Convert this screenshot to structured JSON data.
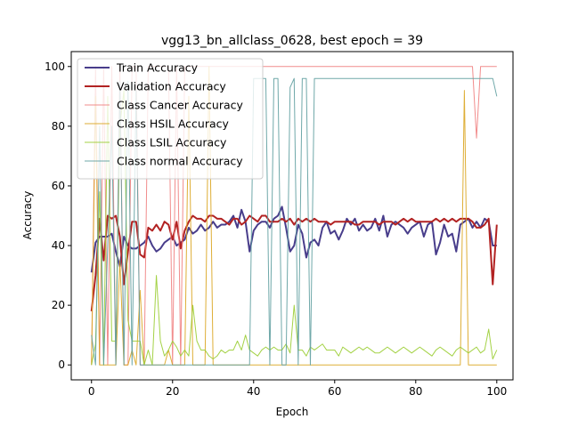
{
  "chart_data": {
    "type": "line",
    "title": "vgg13_bn_allclass_0628, best epoch = 39",
    "xlabel": "Epoch",
    "ylabel": "Accuracy",
    "xlim": [
      -5,
      104
    ],
    "ylim": [
      -5,
      105
    ],
    "xticks": [
      0,
      20,
      40,
      60,
      80,
      100
    ],
    "yticks": [
      0,
      20,
      40,
      60,
      80,
      100
    ],
    "legend_position": "top-left",
    "grid": false,
    "series": [
      {
        "name": "Train Accuracy",
        "color": "#483d8b",
        "width": 2,
        "alpha": 1,
        "values": [
          31,
          41,
          43,
          43,
          43,
          44,
          38,
          33,
          43,
          40,
          39,
          39,
          40,
          41,
          43,
          40,
          38,
          39,
          41,
          42,
          43,
          40,
          41,
          42,
          46,
          44,
          45,
          47,
          45,
          46,
          48,
          46,
          47,
          47,
          48,
          50,
          46,
          52,
          48,
          38,
          45,
          47,
          48,
          48,
          46,
          49,
          50,
          53,
          46,
          38,
          40,
          47,
          44,
          36,
          41,
          42,
          40,
          46,
          48,
          44,
          45,
          42,
          45,
          49,
          47,
          49,
          45,
          47,
          45,
          46,
          49,
          45,
          50,
          43,
          47,
          48,
          47,
          46,
          44,
          46,
          47,
          48,
          43,
          47,
          48,
          37,
          41,
          47,
          43,
          44,
          38,
          47,
          48,
          49,
          46,
          48,
          46,
          49,
          48,
          40,
          40
        ]
      },
      {
        "name": "Validation Accuracy",
        "color": "#b22222",
        "width": 2,
        "alpha": 1,
        "values": [
          18,
          30,
          49,
          35,
          50,
          49,
          50,
          43,
          27,
          38,
          48,
          48,
          37,
          36,
          46,
          45,
          47,
          45,
          48,
          47,
          42,
          48,
          39,
          45,
          48,
          50,
          49,
          49,
          48,
          50,
          50,
          49,
          49,
          48,
          47,
          49,
          49,
          47,
          48,
          50,
          49,
          48,
          50,
          50,
          48,
          48,
          48,
          49,
          48,
          49,
          47,
          49,
          48,
          49,
          48,
          49,
          48,
          48,
          48,
          47,
          48,
          48,
          48,
          48,
          48,
          47,
          47,
          48,
          48,
          48,
          48,
          47,
          48,
          48,
          48,
          47,
          48,
          49,
          48,
          49,
          48,
          48,
          48,
          48,
          48,
          49,
          48,
          49,
          48,
          49,
          48,
          49,
          49,
          49,
          48,
          46,
          46,
          47,
          49,
          27,
          47
        ]
      },
      {
        "name": "Class Cancer Accuracy",
        "color": "#f08080",
        "width": 1,
        "alpha": 0.9,
        "values": [
          0,
          100,
          0,
          100,
          0,
          100,
          0,
          100,
          0,
          0,
          100,
          100,
          0,
          0,
          100,
          100,
          100,
          100,
          100,
          100,
          0,
          100,
          0,
          100,
          100,
          100,
          100,
          100,
          100,
          100,
          100,
          100,
          100,
          100,
          100,
          100,
          100,
          100,
          100,
          100,
          100,
          100,
          100,
          100,
          100,
          100,
          100,
          100,
          100,
          100,
          100,
          100,
          100,
          100,
          100,
          100,
          100,
          100,
          100,
          100,
          100,
          100,
          100,
          100,
          100,
          100,
          100,
          100,
          100,
          100,
          100,
          100,
          100,
          100,
          100,
          100,
          100,
          100,
          100,
          100,
          100,
          100,
          100,
          100,
          100,
          100,
          100,
          100,
          100,
          100,
          100,
          100,
          100,
          100,
          100,
          76,
          100,
          100,
          100,
          100,
          100
        ]
      },
      {
        "name": "Class HSIL Accuracy",
        "color": "#daa520",
        "width": 1,
        "alpha": 0.9,
        "values": [
          0,
          90,
          0,
          0,
          0,
          0,
          0,
          35,
          0,
          0,
          5,
          0,
          25,
          0,
          0,
          0,
          0,
          0,
          0,
          5,
          0,
          0,
          0,
          0,
          90,
          0,
          0,
          0,
          0,
          100,
          0,
          0,
          0,
          0,
          0,
          0,
          0,
          0,
          0,
          0,
          0,
          0,
          0,
          0,
          0,
          0,
          0,
          0,
          0,
          0,
          0,
          0,
          0,
          0,
          0,
          0,
          0,
          0,
          0,
          0,
          0,
          0,
          0,
          0,
          0,
          0,
          0,
          0,
          0,
          0,
          0,
          0,
          0,
          0,
          0,
          0,
          0,
          0,
          0,
          0,
          0,
          0,
          0,
          0,
          0,
          0,
          0,
          0,
          0,
          0,
          0,
          0,
          92,
          0,
          0,
          0,
          0,
          0,
          0,
          0,
          0
        ]
      },
      {
        "name": "Class LSIL Accuracy",
        "color": "#9acd32",
        "width": 1,
        "alpha": 0.9,
        "values": [
          0,
          7,
          58,
          0,
          90,
          8,
          8,
          80,
          92,
          15,
          8,
          8,
          8,
          0,
          5,
          0,
          30,
          8,
          3,
          5,
          8,
          6,
          3,
          5,
          3,
          20,
          8,
          5,
          5,
          3,
          2,
          3,
          5,
          4,
          5,
          5,
          8,
          5,
          10,
          5,
          4,
          3,
          5,
          6,
          5,
          6,
          5,
          5,
          7,
          4,
          20,
          5,
          5,
          3,
          6,
          5,
          6,
          7,
          5,
          5,
          5,
          3,
          6,
          5,
          4,
          5,
          6,
          5,
          6,
          5,
          4,
          4,
          5,
          6,
          5,
          4,
          5,
          6,
          5,
          4,
          5,
          6,
          5,
          4,
          3,
          5,
          6,
          5,
          4,
          3,
          5,
          6,
          5,
          4,
          5,
          6,
          4,
          5,
          12,
          2,
          5
        ]
      },
      {
        "name": "Class normal Accuracy",
        "color": "#5f9ea0",
        "width": 1,
        "alpha": 0.9,
        "values": [
          10,
          0,
          80,
          0,
          40,
          80,
          0,
          95,
          0,
          95,
          0,
          92,
          0,
          0,
          0,
          0,
          0,
          0,
          0,
          0,
          0,
          0,
          0,
          0,
          0,
          0,
          0,
          0,
          0,
          0,
          0,
          0,
          0,
          0,
          0,
          0,
          0,
          0,
          0,
          0,
          96,
          96,
          96,
          96,
          0,
          96,
          96,
          0,
          0,
          93,
          96,
          0,
          96,
          96,
          0,
          96,
          96,
          96,
          96,
          96,
          96,
          96,
          96,
          96,
          96,
          96,
          96,
          96,
          96,
          96,
          96,
          96,
          96,
          96,
          96,
          96,
          96,
          96,
          96,
          96,
          96,
          96,
          96,
          96,
          96,
          96,
          96,
          96,
          96,
          96,
          96,
          96,
          96,
          96,
          96,
          96,
          96,
          96,
          96,
          96,
          90
        ]
      }
    ]
  }
}
